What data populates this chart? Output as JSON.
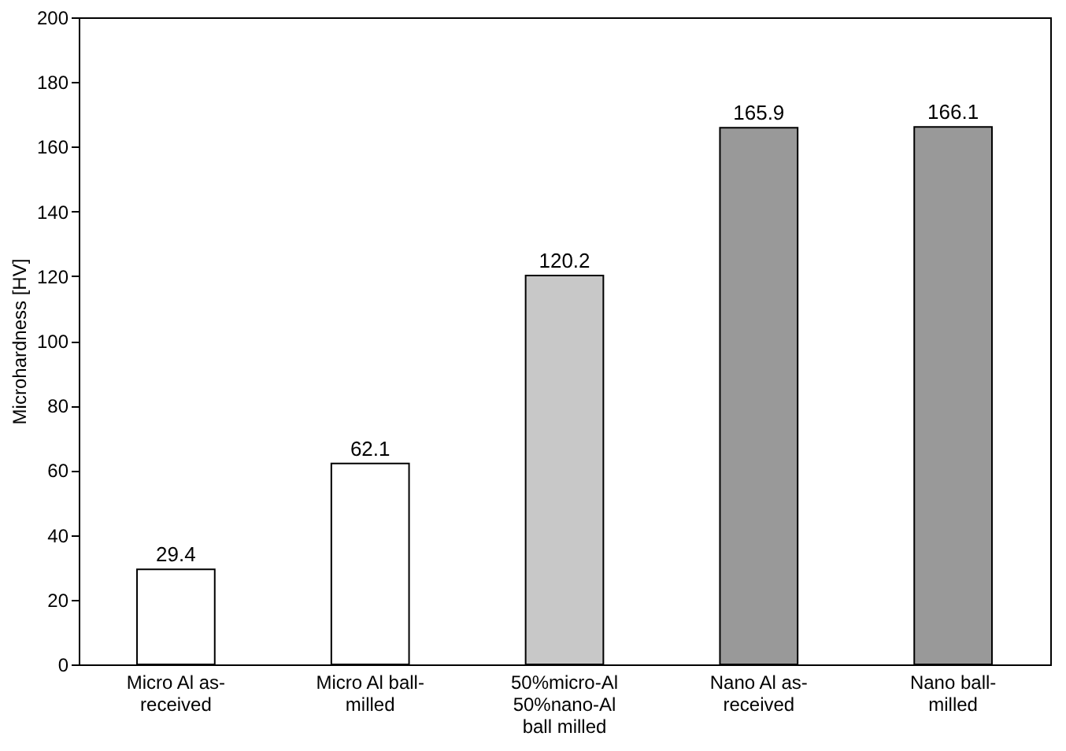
{
  "chart_data": {
    "type": "bar",
    "ylabel": "Microhardness  [HV]",
    "categories": [
      "Micro Al as-received",
      "Micro Al ball-milled",
      "50%micro-Al 50%nano-Al ball milled",
      "Nano Al as-received",
      "Nano ball-milled"
    ],
    "values": [
      29.4,
      62.1,
      120.2,
      165.9,
      166.1
    ],
    "colors": [
      "#ffffff",
      "#ffffff",
      "#c8c8c8",
      "#999999",
      "#999999"
    ],
    "ylim": [
      0,
      200
    ],
    "yticks": [
      0,
      20,
      40,
      60,
      80,
      100,
      120,
      140,
      160,
      180,
      200
    ],
    "data_labels": true,
    "grid": false
  }
}
